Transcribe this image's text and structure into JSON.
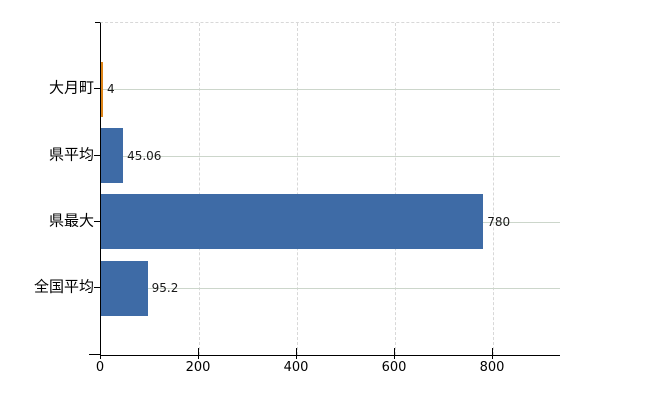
{
  "chart_data": {
    "type": "bar",
    "orientation": "horizontal",
    "title": "",
    "xlabel": "",
    "ylabel": "",
    "categories": [
      "大月町",
      "県平均",
      "県最大",
      "全国平均"
    ],
    "values": [
      4,
      45.06,
      780,
      95.2
    ],
    "value_labels": [
      "4",
      "45.06",
      "780",
      "95.2"
    ],
    "bar_colors": [
      "#dd8418",
      "#3e6ba6",
      "#3e6ba6",
      "#3e6ba6"
    ],
    "default_bar_color": "#3e6ba6",
    "highlight_bar_color": "#dd8418",
    "x_axis": {
      "tick_values": [
        0,
        200,
        400,
        600,
        800
      ],
      "tick_labels": [
        "0",
        "200",
        "400",
        "600",
        "800"
      ],
      "range": [
        0,
        937
      ]
    },
    "grid": {
      "horizontal": true,
      "vertical": true,
      "horizontal_color": "#ccd6cb",
      "vertical_color": "#d8d8d8"
    },
    "axis_color": "#000000",
    "background_color": "#ffffff",
    "legend": ""
  }
}
